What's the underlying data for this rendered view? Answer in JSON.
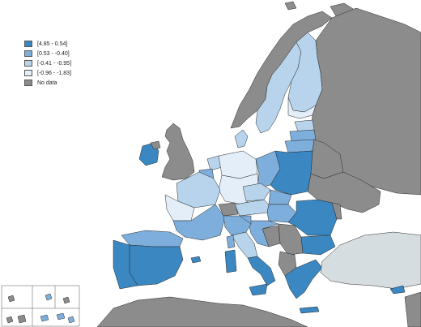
{
  "legend": {
    "items": [
      {
        "label": "[4.85 - 0.54]",
        "color": "#3a87c2"
      },
      {
        "label": "[0.53 - -0.40]",
        "color": "#7eaedb"
      },
      {
        "label": "[-0.41 - -0.95]",
        "color": "#b7d4ec"
      },
      {
        "label": "[-0.96 - -1.83]",
        "color": "#e3eef8"
      },
      {
        "label": "No data",
        "color": "#8c8c8c"
      }
    ]
  },
  "colors": {
    "sea": "#ffffff",
    "non_eu_land": "#8c8c8c",
    "turkey_land": "#d6dde1",
    "border": "#2a2a2a"
  }
}
